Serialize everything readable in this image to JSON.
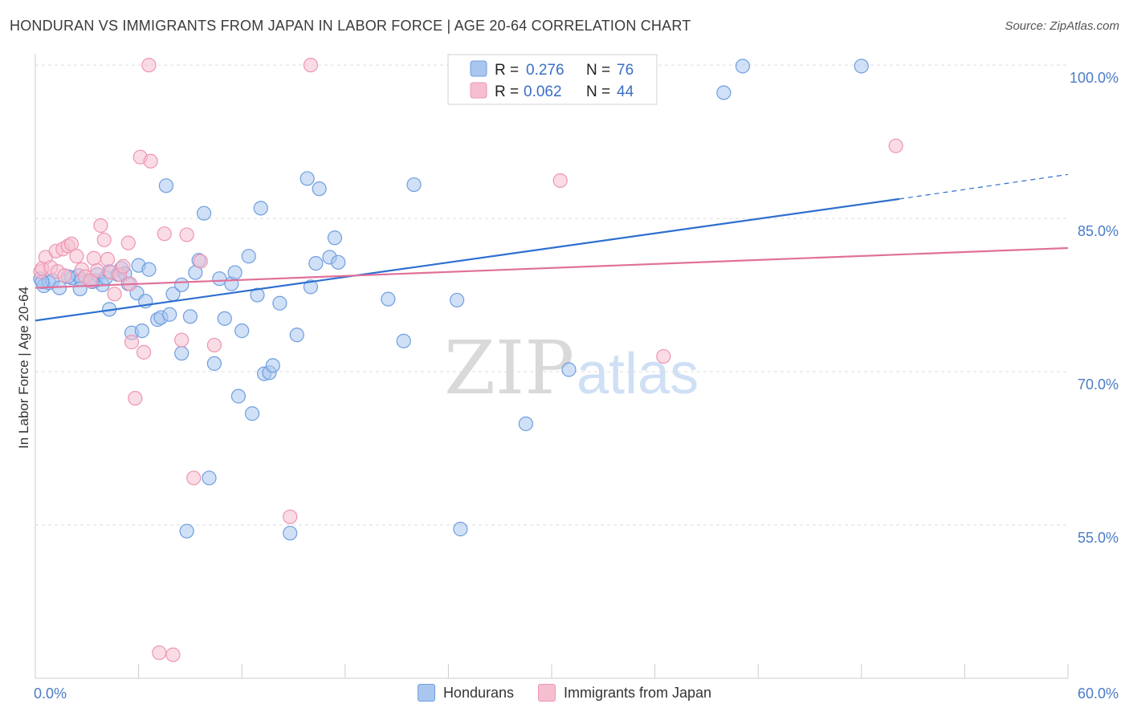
{
  "title": "HONDURAN VS IMMIGRANTS FROM JAPAN IN LABOR FORCE | AGE 20-64 CORRELATION CHART",
  "source": "Source: ZipAtlas.com",
  "watermark": {
    "zip": "ZIP",
    "atlas": "atlas"
  },
  "legend": {
    "rows": [
      {
        "r_label": "R =",
        "r_value": "0.276",
        "n_label": "N =",
        "n_value": "76"
      },
      {
        "r_label": "R =",
        "r_value": "0.062",
        "n_label": "N =",
        "n_value": "44"
      }
    ]
  },
  "bottom_legend": {
    "hondurans": "Hondurans",
    "japan": "Immigrants from Japan"
  },
  "colors": {
    "blue_fill": "#a9c6ee",
    "blue_stroke": "#6f9ee0",
    "blue_line": "#2e6fcf",
    "pink_fill": "#f6bfd0",
    "pink_stroke": "#ee95b2",
    "pink_line": "#e0709a",
    "grid": "#dcdcdc",
    "axis": "#cccccc"
  },
  "chart_data": {
    "type": "scatter",
    "title": "HONDURAN VS IMMIGRANTS FROM JAPAN IN LABOR FORCE | AGE 20-64 CORRELATION CHART",
    "xlabel": "",
    "ylabel": "In Labor Force | Age 20-64",
    "xlim": [
      0,
      60
    ],
    "ylim": [
      40,
      101.5
    ],
    "x_tick_labels": [
      "0.0%",
      "60.0%"
    ],
    "y_ticks": [
      55,
      70,
      85,
      100
    ],
    "y_tick_labels": [
      "55.0%",
      "70.0%",
      "85.0%",
      "100.0%"
    ],
    "grid": true,
    "legend_position": "top-center",
    "series": [
      {
        "name": "Hondurans",
        "R": 0.276,
        "N": 76,
        "trend": {
          "x0": 0,
          "y0": 75.0,
          "x1": 50.2,
          "y1": 86.9,
          "x_dash_end": 60,
          "y_dash_end": 89.3
        },
        "points": [
          [
            0.3,
            79.1
          ],
          [
            0.5,
            78.4
          ],
          [
            0.8,
            78.7
          ],
          [
            1.0,
            78.9
          ],
          [
            1.4,
            78.2
          ],
          [
            2.1,
            79.2
          ],
          [
            2.5,
            79.4
          ],
          [
            2.7,
            79.0
          ],
          [
            2.6,
            78.1
          ],
          [
            3.5,
            78.9
          ],
          [
            3.6,
            79.5
          ],
          [
            3.9,
            78.5
          ],
          [
            4.1,
            79.2
          ],
          [
            4.3,
            79.8
          ],
          [
            4.3,
            76.1
          ],
          [
            4.8,
            79.5
          ],
          [
            5.0,
            80.1
          ],
          [
            5.2,
            79.6
          ],
          [
            5.4,
            78.6
          ],
          [
            5.6,
            73.8
          ],
          [
            5.9,
            77.7
          ],
          [
            6.0,
            80.4
          ],
          [
            6.2,
            74.0
          ],
          [
            6.4,
            76.9
          ],
          [
            6.6,
            80.0
          ],
          [
            7.1,
            75.1
          ],
          [
            7.3,
            75.3
          ],
          [
            7.6,
            88.2
          ],
          [
            7.8,
            75.6
          ],
          [
            8.0,
            77.6
          ],
          [
            8.5,
            71.8
          ],
          [
            8.5,
            78.5
          ],
          [
            8.8,
            54.4
          ],
          [
            9.0,
            75.4
          ],
          [
            9.3,
            79.7
          ],
          [
            9.5,
            80.9
          ],
          [
            9.8,
            85.5
          ],
          [
            10.1,
            59.6
          ],
          [
            10.4,
            70.8
          ],
          [
            10.7,
            79.1
          ],
          [
            11.0,
            75.2
          ],
          [
            11.4,
            78.6
          ],
          [
            11.6,
            79.7
          ],
          [
            11.8,
            67.6
          ],
          [
            12.0,
            74.0
          ],
          [
            12.4,
            81.3
          ],
          [
            12.6,
            65.9
          ],
          [
            12.9,
            77.5
          ],
          [
            13.1,
            86.0
          ],
          [
            13.3,
            69.8
          ],
          [
            13.6,
            69.9
          ],
          [
            13.8,
            70.6
          ],
          [
            14.2,
            76.7
          ],
          [
            14.8,
            54.2
          ],
          [
            15.2,
            73.6
          ],
          [
            15.8,
            88.9
          ],
          [
            16.0,
            78.3
          ],
          [
            16.3,
            80.6
          ],
          [
            16.5,
            87.9
          ],
          [
            17.1,
            81.2
          ],
          [
            17.4,
            83.1
          ],
          [
            17.6,
            80.7
          ],
          [
            20.5,
            77.1
          ],
          [
            21.4,
            73.0
          ],
          [
            22.0,
            88.3
          ],
          [
            24.5,
            77.0
          ],
          [
            24.7,
            54.6
          ],
          [
            26.0,
            98.1
          ],
          [
            28.5,
            64.9
          ],
          [
            31.0,
            70.2
          ],
          [
            40.0,
            97.3
          ],
          [
            41.1,
            99.9
          ],
          [
            48.0,
            99.9
          ],
          [
            0.4,
            78.8
          ],
          [
            1.9,
            79.3
          ],
          [
            3.3,
            78.8
          ]
        ]
      },
      {
        "name": "Immigrants from Japan",
        "R": 0.062,
        "N": 44,
        "trend": {
          "x0": 0,
          "y0": 78.2,
          "x1": 60,
          "y1": 82.1
        },
        "points": [
          [
            0.3,
            79.8
          ],
          [
            0.4,
            80.1
          ],
          [
            0.6,
            81.2
          ],
          [
            0.9,
            80.2
          ],
          [
            1.2,
            81.8
          ],
          [
            1.3,
            79.8
          ],
          [
            1.6,
            82.0
          ],
          [
            1.7,
            79.4
          ],
          [
            1.9,
            82.3
          ],
          [
            2.1,
            82.5
          ],
          [
            2.4,
            81.3
          ],
          [
            2.7,
            80.0
          ],
          [
            2.9,
            79.3
          ],
          [
            3.2,
            78.9
          ],
          [
            3.4,
            81.1
          ],
          [
            3.6,
            79.9
          ],
          [
            3.8,
            84.3
          ],
          [
            4.0,
            82.9
          ],
          [
            4.2,
            81.0
          ],
          [
            4.4,
            79.7
          ],
          [
            4.6,
            77.6
          ],
          [
            4.9,
            79.5
          ],
          [
            5.1,
            80.3
          ],
          [
            5.4,
            82.6
          ],
          [
            5.5,
            78.6
          ],
          [
            5.6,
            72.9
          ],
          [
            5.8,
            67.4
          ],
          [
            6.1,
            91.0
          ],
          [
            6.3,
            71.9
          ],
          [
            6.6,
            100.0
          ],
          [
            6.7,
            90.6
          ],
          [
            7.2,
            42.5
          ],
          [
            7.5,
            83.5
          ],
          [
            8.0,
            42.3
          ],
          [
            8.5,
            73.1
          ],
          [
            8.8,
            83.4
          ],
          [
            9.2,
            59.6
          ],
          [
            9.6,
            80.8
          ],
          [
            10.4,
            72.6
          ],
          [
            14.8,
            55.8
          ],
          [
            16.0,
            100.0
          ],
          [
            30.5,
            88.7
          ],
          [
            36.5,
            71.5
          ],
          [
            50.0,
            92.1
          ]
        ]
      }
    ]
  }
}
